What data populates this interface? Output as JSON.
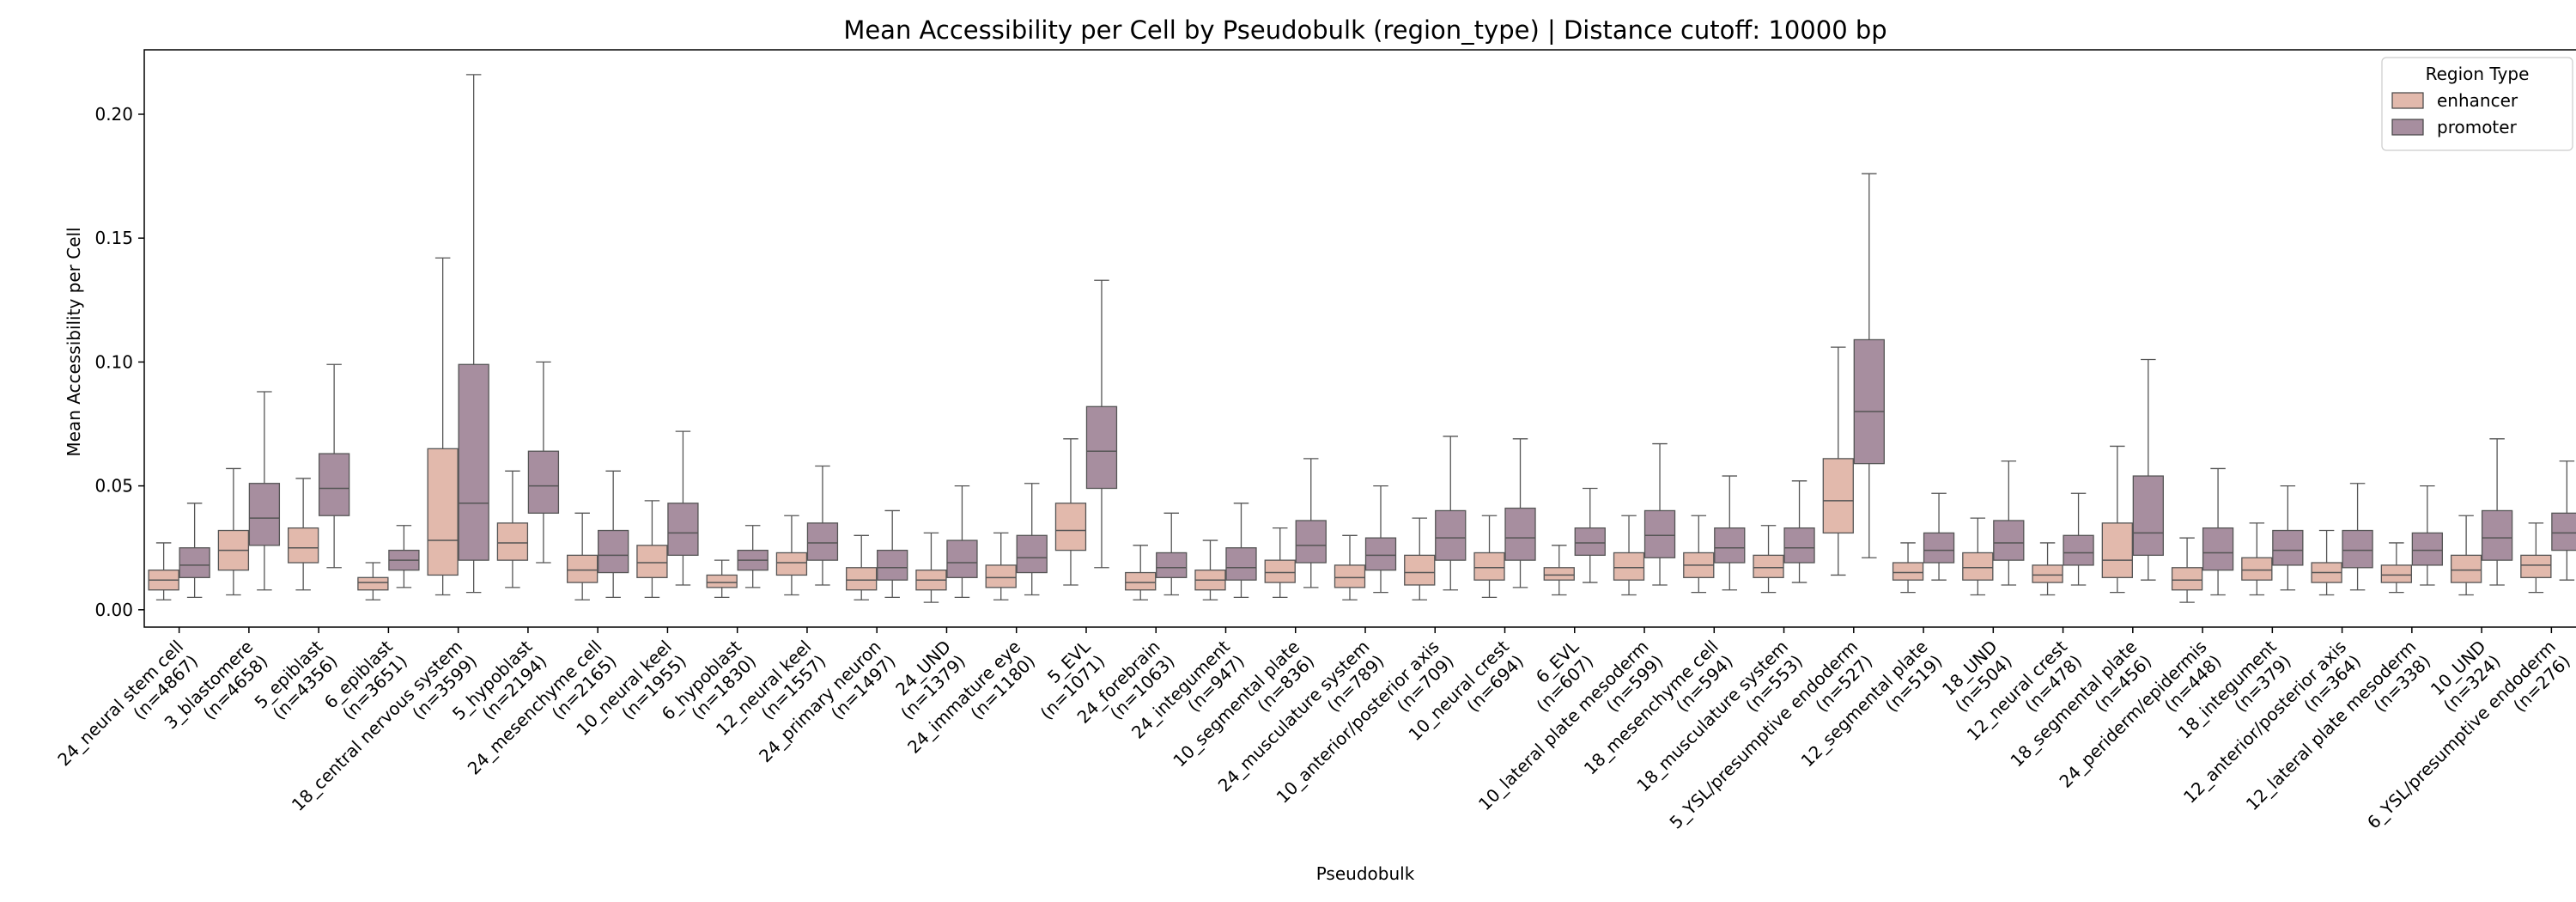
{
  "chart_data": {
    "type": "box",
    "title": "Mean Accessibility per Cell by Pseudobulk (region_type) | Distance cutoff: 10000 bp",
    "xlabel": "Pseudobulk",
    "ylabel": "Mean Accessibility per Cell",
    "ylim": [
      -0.007,
      0.226
    ],
    "yticks": [
      "0.00",
      "0.05",
      "0.10",
      "0.15",
      "0.20"
    ],
    "ytick_values": [
      0.0,
      0.05,
      0.1,
      0.15,
      0.2
    ],
    "grid": false,
    "legend": {
      "title": "Region Type",
      "position": "top-right"
    },
    "series": [
      {
        "name": "enhancer",
        "color": "#e2b9ac"
      },
      {
        "name": "promoter",
        "color": "#a78e9f"
      }
    ],
    "categories": [
      {
        "name": "24_neural stem cell",
        "n": "(n=4867)",
        "enhancer": {
          "whislo": 0.004,
          "q1": 0.008,
          "med": 0.012,
          "q3": 0.016,
          "whishi": 0.027
        },
        "promoter": {
          "whislo": 0.005,
          "q1": 0.013,
          "med": 0.018,
          "q3": 0.025,
          "whishi": 0.043
        }
      },
      {
        "name": "3_blastomere",
        "n": "(n=4658)",
        "enhancer": {
          "whislo": 0.006,
          "q1": 0.016,
          "med": 0.024,
          "q3": 0.032,
          "whishi": 0.057
        },
        "promoter": {
          "whislo": 0.008,
          "q1": 0.026,
          "med": 0.037,
          "q3": 0.051,
          "whishi": 0.088
        }
      },
      {
        "name": "5_epiblast",
        "n": "(n=4356)",
        "enhancer": {
          "whislo": 0.008,
          "q1": 0.019,
          "med": 0.025,
          "q3": 0.033,
          "whishi": 0.053
        },
        "promoter": {
          "whislo": 0.017,
          "q1": 0.038,
          "med": 0.049,
          "q3": 0.063,
          "whishi": 0.099
        }
      },
      {
        "name": "6_epiblast",
        "n": "(n=3651)",
        "enhancer": {
          "whislo": 0.004,
          "q1": 0.008,
          "med": 0.011,
          "q3": 0.013,
          "whishi": 0.019
        },
        "promoter": {
          "whislo": 0.009,
          "q1": 0.016,
          "med": 0.02,
          "q3": 0.024,
          "whishi": 0.034
        }
      },
      {
        "name": "18_central nervous system",
        "n": "(n=3599)",
        "enhancer": {
          "whislo": 0.006,
          "q1": 0.014,
          "med": 0.028,
          "q3": 0.065,
          "whishi": 0.142
        },
        "promoter": {
          "whislo": 0.007,
          "q1": 0.02,
          "med": 0.043,
          "q3": 0.099,
          "whishi": 0.216
        }
      },
      {
        "name": "5_hypoblast",
        "n": "(n=2194)",
        "enhancer": {
          "whislo": 0.009,
          "q1": 0.02,
          "med": 0.027,
          "q3": 0.035,
          "whishi": 0.056
        },
        "promoter": {
          "whislo": 0.019,
          "q1": 0.039,
          "med": 0.05,
          "q3": 0.064,
          "whishi": 0.1
        }
      },
      {
        "name": "24_mesenchyme cell",
        "n": "(n=2165)",
        "enhancer": {
          "whislo": 0.004,
          "q1": 0.011,
          "med": 0.016,
          "q3": 0.022,
          "whishi": 0.039
        },
        "promoter": {
          "whislo": 0.005,
          "q1": 0.015,
          "med": 0.022,
          "q3": 0.032,
          "whishi": 0.056
        }
      },
      {
        "name": "10_neural keel",
        "n": "(n=1955)",
        "enhancer": {
          "whislo": 0.005,
          "q1": 0.013,
          "med": 0.019,
          "q3": 0.026,
          "whishi": 0.044
        },
        "promoter": {
          "whislo": 0.01,
          "q1": 0.022,
          "med": 0.031,
          "q3": 0.043,
          "whishi": 0.072
        }
      },
      {
        "name": "6_hypoblast",
        "n": "(n=1830)",
        "enhancer": {
          "whislo": 0.005,
          "q1": 0.009,
          "med": 0.011,
          "q3": 0.014,
          "whishi": 0.02
        },
        "promoter": {
          "whislo": 0.009,
          "q1": 0.016,
          "med": 0.02,
          "q3": 0.024,
          "whishi": 0.034
        }
      },
      {
        "name": "12_neural keel",
        "n": "(n=1557)",
        "enhancer": {
          "whislo": 0.006,
          "q1": 0.014,
          "med": 0.019,
          "q3": 0.023,
          "whishi": 0.038
        },
        "promoter": {
          "whislo": 0.01,
          "q1": 0.02,
          "med": 0.027,
          "q3": 0.035,
          "whishi": 0.058
        }
      },
      {
        "name": "24_primary neuron",
        "n": "(n=1497)",
        "enhancer": {
          "whislo": 0.004,
          "q1": 0.008,
          "med": 0.012,
          "q3": 0.017,
          "whishi": 0.03
        },
        "promoter": {
          "whislo": 0.005,
          "q1": 0.012,
          "med": 0.017,
          "q3": 0.024,
          "whishi": 0.04
        }
      },
      {
        "name": "24_UND",
        "n": "(n=1379)",
        "enhancer": {
          "whislo": 0.003,
          "q1": 0.008,
          "med": 0.012,
          "q3": 0.016,
          "whishi": 0.031
        },
        "promoter": {
          "whislo": 0.005,
          "q1": 0.013,
          "med": 0.019,
          "q3": 0.028,
          "whishi": 0.05
        }
      },
      {
        "name": "24_immature eye",
        "n": "(n=1180)",
        "enhancer": {
          "whislo": 0.004,
          "q1": 0.009,
          "med": 0.013,
          "q3": 0.018,
          "whishi": 0.031
        },
        "promoter": {
          "whislo": 0.006,
          "q1": 0.015,
          "med": 0.021,
          "q3": 0.03,
          "whishi": 0.051
        }
      },
      {
        "name": "5_EVL",
        "n": "(n=1071)",
        "enhancer": {
          "whislo": 0.01,
          "q1": 0.024,
          "med": 0.032,
          "q3": 0.043,
          "whishi": 0.069
        },
        "promoter": {
          "whislo": 0.017,
          "q1": 0.049,
          "med": 0.064,
          "q3": 0.082,
          "whishi": 0.133
        }
      },
      {
        "name": "24_forebrain",
        "n": "(n=1063)",
        "enhancer": {
          "whislo": 0.004,
          "q1": 0.008,
          "med": 0.011,
          "q3": 0.015,
          "whishi": 0.026
        },
        "promoter": {
          "whislo": 0.006,
          "q1": 0.013,
          "med": 0.017,
          "q3": 0.023,
          "whishi": 0.039
        }
      },
      {
        "name": "24_integument",
        "n": "(n=947)",
        "enhancer": {
          "whislo": 0.004,
          "q1": 0.008,
          "med": 0.012,
          "q3": 0.016,
          "whishi": 0.028
        },
        "promoter": {
          "whislo": 0.005,
          "q1": 0.012,
          "med": 0.017,
          "q3": 0.025,
          "whishi": 0.043
        }
      },
      {
        "name": "10_segmental plate",
        "n": "(n=836)",
        "enhancer": {
          "whislo": 0.005,
          "q1": 0.011,
          "med": 0.015,
          "q3": 0.02,
          "whishi": 0.033
        },
        "promoter": {
          "whislo": 0.009,
          "q1": 0.019,
          "med": 0.026,
          "q3": 0.036,
          "whishi": 0.061
        }
      },
      {
        "name": "24_musculature system",
        "n": "(n=789)",
        "enhancer": {
          "whislo": 0.004,
          "q1": 0.009,
          "med": 0.013,
          "q3": 0.018,
          "whishi": 0.03
        },
        "promoter": {
          "whislo": 0.007,
          "q1": 0.016,
          "med": 0.022,
          "q3": 0.029,
          "whishi": 0.05
        }
      },
      {
        "name": "10_anterior/posterior axis",
        "n": "(n=709)",
        "enhancer": {
          "whislo": 0.004,
          "q1": 0.01,
          "med": 0.015,
          "q3": 0.022,
          "whishi": 0.037
        },
        "promoter": {
          "whislo": 0.008,
          "q1": 0.02,
          "med": 0.029,
          "q3": 0.04,
          "whishi": 0.07
        }
      },
      {
        "name": "10_neural crest",
        "n": "(n=694)",
        "enhancer": {
          "whislo": 0.005,
          "q1": 0.012,
          "med": 0.017,
          "q3": 0.023,
          "whishi": 0.038
        },
        "promoter": {
          "whislo": 0.009,
          "q1": 0.02,
          "med": 0.029,
          "q3": 0.041,
          "whishi": 0.069
        }
      },
      {
        "name": "6_EVL",
        "n": "(n=607)",
        "enhancer": {
          "whislo": 0.006,
          "q1": 0.012,
          "med": 0.014,
          "q3": 0.017,
          "whishi": 0.026
        },
        "promoter": {
          "whislo": 0.011,
          "q1": 0.022,
          "med": 0.027,
          "q3": 0.033,
          "whishi": 0.049
        }
      },
      {
        "name": "10_lateral plate mesoderm",
        "n": "(n=599)",
        "enhancer": {
          "whislo": 0.006,
          "q1": 0.012,
          "med": 0.017,
          "q3": 0.023,
          "whishi": 0.038
        },
        "promoter": {
          "whislo": 0.01,
          "q1": 0.021,
          "med": 0.03,
          "q3": 0.04,
          "whishi": 0.067
        }
      },
      {
        "name": "18_mesenchyme cell",
        "n": "(n=594)",
        "enhancer": {
          "whislo": 0.007,
          "q1": 0.013,
          "med": 0.018,
          "q3": 0.023,
          "whishi": 0.038
        },
        "promoter": {
          "whislo": 0.008,
          "q1": 0.019,
          "med": 0.025,
          "q3": 0.033,
          "whishi": 0.054
        }
      },
      {
        "name": "18_musculature system",
        "n": "(n=553)",
        "enhancer": {
          "whislo": 0.007,
          "q1": 0.013,
          "med": 0.017,
          "q3": 0.022,
          "whishi": 0.034
        },
        "promoter": {
          "whislo": 0.011,
          "q1": 0.019,
          "med": 0.025,
          "q3": 0.033,
          "whishi": 0.052
        }
      },
      {
        "name": "5_YSL/presumptive endoderm",
        "n": "(n=527)",
        "enhancer": {
          "whislo": 0.014,
          "q1": 0.031,
          "med": 0.044,
          "q3": 0.061,
          "whishi": 0.106
        },
        "promoter": {
          "whislo": 0.021,
          "q1": 0.059,
          "med": 0.08,
          "q3": 0.109,
          "whishi": 0.176
        }
      },
      {
        "name": "12_segmental plate",
        "n": "(n=519)",
        "enhancer": {
          "whislo": 0.007,
          "q1": 0.012,
          "med": 0.015,
          "q3": 0.019,
          "whishi": 0.027
        },
        "promoter": {
          "whislo": 0.012,
          "q1": 0.019,
          "med": 0.024,
          "q3": 0.031,
          "whishi": 0.047
        }
      },
      {
        "name": "18_UND",
        "n": "(n=504)",
        "enhancer": {
          "whislo": 0.006,
          "q1": 0.012,
          "med": 0.017,
          "q3": 0.023,
          "whishi": 0.037
        },
        "promoter": {
          "whislo": 0.01,
          "q1": 0.02,
          "med": 0.027,
          "q3": 0.036,
          "whishi": 0.06
        }
      },
      {
        "name": "12_neural crest",
        "n": "(n=478)",
        "enhancer": {
          "whislo": 0.006,
          "q1": 0.011,
          "med": 0.014,
          "q3": 0.018,
          "whishi": 0.027
        },
        "promoter": {
          "whislo": 0.01,
          "q1": 0.018,
          "med": 0.023,
          "q3": 0.03,
          "whishi": 0.047
        }
      },
      {
        "name": "18_segmental plate",
        "n": "(n=456)",
        "enhancer": {
          "whislo": 0.007,
          "q1": 0.013,
          "med": 0.02,
          "q3": 0.035,
          "whishi": 0.066
        },
        "promoter": {
          "whislo": 0.012,
          "q1": 0.022,
          "med": 0.031,
          "q3": 0.054,
          "whishi": 0.101
        }
      },
      {
        "name": "24_periderm/epidermis",
        "n": "(n=448)",
        "enhancer": {
          "whislo": 0.003,
          "q1": 0.008,
          "med": 0.012,
          "q3": 0.017,
          "whishi": 0.029
        },
        "promoter": {
          "whislo": 0.006,
          "q1": 0.016,
          "med": 0.023,
          "q3": 0.033,
          "whishi": 0.057
        }
      },
      {
        "name": "18_integument",
        "n": "(n=379)",
        "enhancer": {
          "whislo": 0.006,
          "q1": 0.012,
          "med": 0.016,
          "q3": 0.021,
          "whishi": 0.035
        },
        "promoter": {
          "whislo": 0.008,
          "q1": 0.018,
          "med": 0.024,
          "q3": 0.032,
          "whishi": 0.05
        }
      },
      {
        "name": "12_anterior/posterior axis",
        "n": "(n=364)",
        "enhancer": {
          "whislo": 0.006,
          "q1": 0.011,
          "med": 0.015,
          "q3": 0.019,
          "whishi": 0.032
        },
        "promoter": {
          "whislo": 0.008,
          "q1": 0.017,
          "med": 0.024,
          "q3": 0.032,
          "whishi": 0.051
        }
      },
      {
        "name": "12_lateral plate mesoderm",
        "n": "(n=338)",
        "enhancer": {
          "whislo": 0.007,
          "q1": 0.011,
          "med": 0.014,
          "q3": 0.018,
          "whishi": 0.027
        },
        "promoter": {
          "whislo": 0.01,
          "q1": 0.018,
          "med": 0.024,
          "q3": 0.031,
          "whishi": 0.05
        }
      },
      {
        "name": "10_UND",
        "n": "(n=324)",
        "enhancer": {
          "whislo": 0.006,
          "q1": 0.011,
          "med": 0.016,
          "q3": 0.022,
          "whishi": 0.038
        },
        "promoter": {
          "whislo": 0.01,
          "q1": 0.02,
          "med": 0.029,
          "q3": 0.04,
          "whishi": 0.069
        }
      },
      {
        "name": "6_YSL/presumptive endoderm",
        "n": "(n=276)",
        "enhancer": {
          "whislo": 0.007,
          "q1": 0.013,
          "med": 0.018,
          "q3": 0.022,
          "whishi": 0.035
        },
        "promoter": {
          "whislo": 0.012,
          "q1": 0.024,
          "med": 0.031,
          "q3": 0.039,
          "whishi": 0.06
        }
      }
    ]
  }
}
